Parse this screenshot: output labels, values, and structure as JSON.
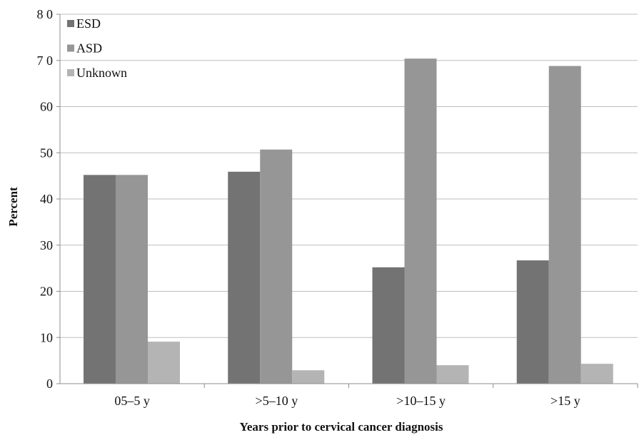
{
  "chart_data": {
    "type": "bar",
    "title": "",
    "xlabel": "Years prior to cervical cancer diagnosis",
    "ylabel": "Percent",
    "ylim": [
      0,
      80
    ],
    "y_ticks": [
      "0",
      "10",
      "20",
      "30",
      "40",
      "50",
      "60",
      "7 0",
      "8 0"
    ],
    "y_tick_values": [
      0,
      10,
      20,
      30,
      40,
      50,
      60,
      70,
      80
    ],
    "categories": [
      "05–5 y",
      ">5–10 y",
      ">10–15 y",
      ">15 y"
    ],
    "series": [
      {
        "name": "ESD",
        "values": [
          45.2,
          45.9,
          25.2,
          26.7
        ],
        "color": "#737373"
      },
      {
        "name": "ASD",
        "values": [
          45.2,
          50.7,
          70.4,
          68.8
        ],
        "color": "#969696"
      },
      {
        "name": "Unknown",
        "values": [
          9.1,
          2.9,
          4.0,
          4.3
        ],
        "color": "#b4b4b4"
      }
    ],
    "grid": true,
    "legend_position": "top-left"
  }
}
